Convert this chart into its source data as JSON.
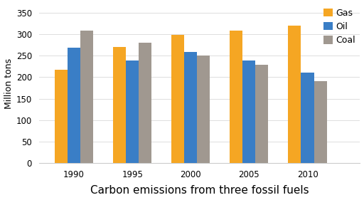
{
  "years": [
    1990,
    1995,
    2000,
    2005,
    2010
  ],
  "gas": [
    218,
    270,
    298,
    308,
    320
  ],
  "oil": [
    268,
    238,
    258,
    238,
    210
  ],
  "coal": [
    308,
    280,
    250,
    228,
    190
  ],
  "gas_color": "#F5A623",
  "oil_color": "#3A7EC6",
  "coal_color": "#A09890",
  "xlabel": "Carbon emissions from three fossil fuels",
  "ylabel": "Million tons",
  "ylim": [
    0,
    370
  ],
  "yticks": [
    0,
    50,
    100,
    150,
    200,
    250,
    300,
    350
  ],
  "legend_labels": [
    "Gas",
    "Oil",
    "Coal"
  ],
  "bg_color": "#FFFFFF",
  "grid_color": "#DDDDDD",
  "xlabel_fontsize": 11,
  "ylabel_fontsize": 9,
  "tick_fontsize": 8.5,
  "legend_fontsize": 9,
  "bar_width": 0.22,
  "figsize": [
    5.12,
    2.81
  ],
  "dpi": 100
}
